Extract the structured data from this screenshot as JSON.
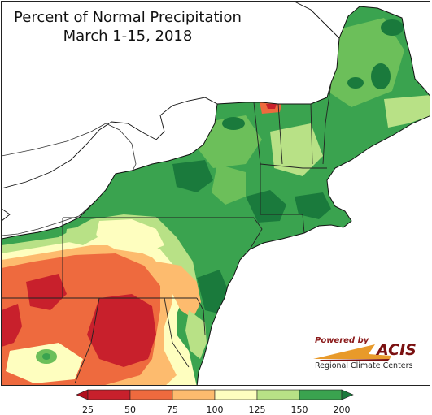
{
  "title": {
    "line1": "Percent of Normal Precipitation",
    "line2": "March 1-15, 2018"
  },
  "credit": {
    "powered_by": "Powered by",
    "acis": "ACIS",
    "regional": "Regional Climate Centers"
  },
  "legend": {
    "bins": [
      {
        "from": "25",
        "to": "50",
        "color": "#c8202c"
      },
      {
        "from": "50",
        "to": "75",
        "color": "#ee6a3e"
      },
      {
        "from": "75",
        "to": "100",
        "color": "#fdbb6e"
      },
      {
        "from": "100",
        "to": "125",
        "color": "#fefebf"
      },
      {
        "from": "125",
        "to": "150",
        "color": "#b8e186"
      },
      {
        "from": "150",
        "to": "200",
        "color": "#3aa34f"
      }
    ],
    "low_arrow_color": "#b0101e",
    "high_arrow_color": "#1a7a3c",
    "labels": [
      "25",
      "50",
      "75",
      "100",
      "125",
      "150",
      "200"
    ]
  }
}
